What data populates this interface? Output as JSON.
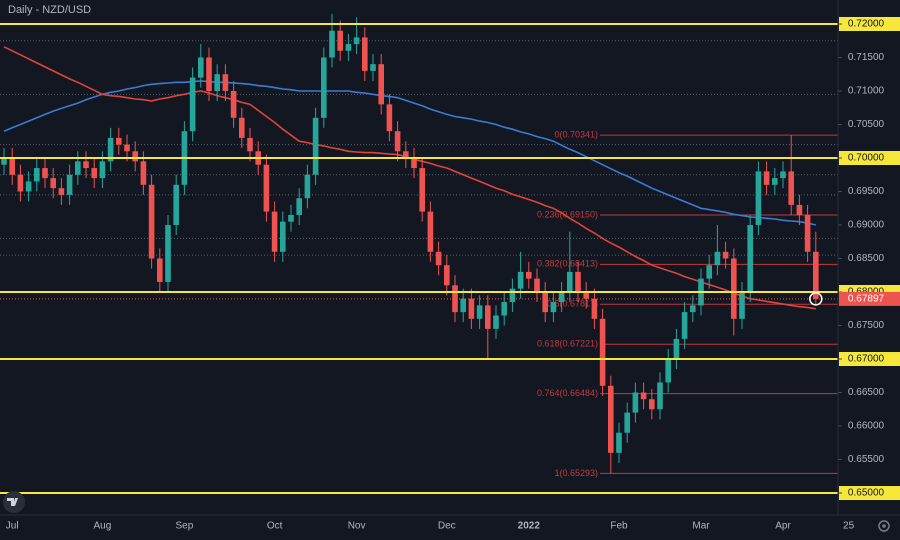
{
  "chart_data": {
    "type": "candlestick",
    "title": "Daily - NZD/USD",
    "categories": [
      null,
      "Jul",
      null,
      null,
      null,
      null,
      null,
      null,
      null,
      null,
      null,
      null,
      "Aug",
      null,
      null,
      null,
      null,
      null,
      null,
      null,
      null,
      null,
      "Sep",
      null,
      null,
      null,
      null,
      null,
      null,
      null,
      null,
      null,
      null,
      "Oct",
      null,
      null,
      null,
      null,
      null,
      null,
      null,
      null,
      null,
      "Nov",
      null,
      null,
      null,
      null,
      null,
      null,
      null,
      null,
      null,
      null,
      "Dec",
      null,
      null,
      null,
      null,
      null,
      null,
      null,
      null,
      null,
      "2022",
      null,
      null,
      null,
      null,
      null,
      null,
      null,
      null,
      null,
      null,
      "Feb",
      null,
      null,
      null,
      null,
      null,
      null,
      null,
      null,
      null,
      "Mar",
      null,
      null,
      null,
      null,
      null,
      null,
      null,
      null,
      null,
      "Apr",
      null,
      null,
      null,
      null,
      null,
      null,
      null,
      "25"
    ],
    "open": [
      0.699,
      0.7,
      0.6975,
      0.695,
      0.6965,
      0.6985,
      0.697,
      0.6955,
      0.6945,
      0.6975,
      0.6995,
      0.6985,
      0.697,
      0.6995,
      0.703,
      0.702,
      0.701,
      0.6995,
      0.696,
      0.685,
      0.6815,
      0.69,
      0.696,
      0.704,
      0.712,
      0.715,
      0.71,
      0.7125,
      0.71,
      0.706,
      0.703,
      0.701,
      0.699,
      0.692,
      0.686,
      0.6905,
      0.6915,
      0.694,
      0.6975,
      0.706,
      0.715,
      0.719,
      0.716,
      0.717,
      0.718,
      0.713,
      0.714,
      0.708,
      0.704,
      0.701,
      0.7,
      0.6985,
      0.692,
      0.686,
      0.684,
      0.681,
      0.677,
      0.679,
      0.676,
      0.678,
      0.6745,
      0.6765,
      0.6785,
      0.6805,
      0.683,
      0.682,
      0.68,
      0.677,
      0.6785,
      0.68,
      0.683,
      0.68,
      0.679,
      0.676,
      0.666,
      0.656,
      0.659,
      0.662,
      0.665,
      0.664,
      0.6625,
      0.6665,
      0.67,
      0.673,
      0.677,
      0.678,
      0.682,
      0.684,
      0.686,
      0.685,
      0.676,
      0.68,
      0.69,
      0.698,
      0.696,
      0.697,
      0.698,
      0.693,
      0.6915,
      0.686,
      null,
      null,
      null,
      null
    ],
    "high": [
      0.7015,
      0.7015,
      0.699,
      0.698,
      0.7,
      0.7,
      0.6985,
      0.697,
      0.699,
      0.701,
      0.701,
      0.7,
      0.701,
      0.7045,
      0.7045,
      0.7035,
      0.7025,
      0.701,
      0.6975,
      0.6865,
      0.6915,
      0.6975,
      0.7055,
      0.7135,
      0.717,
      0.7165,
      0.714,
      0.714,
      0.7115,
      0.7075,
      0.7045,
      0.7025,
      0.7005,
      0.6935,
      0.692,
      0.693,
      0.6955,
      0.699,
      0.7075,
      0.7165,
      0.7215,
      0.7205,
      0.7185,
      0.721,
      0.7195,
      0.7155,
      0.7155,
      0.7095,
      0.7055,
      0.7025,
      0.7015,
      0.7,
      0.6935,
      0.6875,
      0.6855,
      0.6825,
      0.6805,
      0.6805,
      0.6795,
      0.6795,
      0.678,
      0.68,
      0.682,
      0.686,
      0.6845,
      0.6835,
      0.6815,
      0.68,
      0.6815,
      0.689,
      0.6845,
      0.6815,
      0.6805,
      0.6775,
      0.6675,
      0.6605,
      0.6635,
      0.6665,
      0.6665,
      0.6655,
      0.668,
      0.6715,
      0.6745,
      0.6785,
      0.6795,
      0.6835,
      0.6855,
      0.69,
      0.6875,
      0.6865,
      0.6815,
      0.6915,
      0.6995,
      0.6995,
      0.6985,
      0.6995,
      0.7034,
      0.6945,
      0.693,
      0.689,
      null,
      null,
      null,
      null
    ],
    "low": [
      0.6975,
      0.696,
      0.6935,
      0.6935,
      0.695,
      0.6955,
      0.694,
      0.693,
      0.693,
      0.696,
      0.697,
      0.6955,
      0.6955,
      0.698,
      0.7005,
      0.6995,
      0.698,
      0.6945,
      0.6835,
      0.68,
      0.68,
      0.6885,
      0.6945,
      0.7025,
      0.7105,
      0.7085,
      0.7085,
      0.7085,
      0.7045,
      0.7015,
      0.6995,
      0.6975,
      0.6905,
      0.6845,
      0.6845,
      0.689,
      0.69,
      0.6925,
      0.696,
      0.7045,
      0.7135,
      0.7145,
      0.7145,
      0.7155,
      0.7115,
      0.7115,
      0.7065,
      0.7025,
      0.6995,
      0.6985,
      0.697,
      0.6905,
      0.6845,
      0.6825,
      0.6795,
      0.6755,
      0.6755,
      0.6745,
      0.6745,
      0.67,
      0.673,
      0.675,
      0.677,
      0.679,
      0.6805,
      0.6785,
      0.6755,
      0.6755,
      0.677,
      0.6785,
      0.6785,
      0.6775,
      0.6745,
      0.6645,
      0.65293,
      0.6545,
      0.6575,
      0.6605,
      0.6625,
      0.661,
      0.661,
      0.665,
      0.6685,
      0.6715,
      0.6755,
      0.6765,
      0.6805,
      0.6825,
      0.6835,
      0.6735,
      0.6745,
      0.6785,
      0.6885,
      0.6945,
      0.6945,
      0.6955,
      0.6915,
      0.69,
      0.6845,
      0.678,
      null,
      null,
      null,
      null
    ],
    "close": [
      0.7,
      0.6975,
      0.695,
      0.6965,
      0.6985,
      0.697,
      0.6955,
      0.6945,
      0.6975,
      0.6995,
      0.6985,
      0.697,
      0.6995,
      0.703,
      0.702,
      0.701,
      0.6995,
      0.696,
      0.685,
      0.6815,
      0.69,
      0.696,
      0.704,
      0.712,
      0.715,
      0.71,
      0.7125,
      0.71,
      0.706,
      0.703,
      0.701,
      0.699,
      0.692,
      0.686,
      0.6905,
      0.6915,
      0.694,
      0.6975,
      0.706,
      0.715,
      0.719,
      0.716,
      0.717,
      0.718,
      0.713,
      0.714,
      0.708,
      0.704,
      0.701,
      0.7,
      0.6985,
      0.692,
      0.686,
      0.684,
      0.681,
      0.677,
      0.679,
      0.676,
      0.678,
      0.6745,
      0.6765,
      0.6785,
      0.6805,
      0.683,
      0.682,
      0.68,
      0.677,
      0.6785,
      0.68,
      0.683,
      0.68,
      0.679,
      0.676,
      0.666,
      0.656,
      0.659,
      0.662,
      0.665,
      0.664,
      0.6625,
      0.6665,
      0.67,
      0.673,
      0.677,
      0.678,
      0.682,
      0.684,
      0.686,
      0.685,
      0.676,
      0.68,
      0.69,
      0.698,
      0.696,
      0.697,
      0.698,
      0.693,
      0.6915,
      0.686,
      0.67897,
      null,
      null,
      null,
      null
    ],
    "up_color": "#26a69a",
    "down_color": "#ef5350",
    "series": [
      {
        "color": "#3a7bd5",
        "values": [
          0.704,
          0.7045,
          0.705,
          0.7055,
          0.706,
          0.7065,
          0.707,
          0.7074,
          0.7078,
          0.7082,
          0.7087,
          0.7091,
          0.7095,
          0.7098,
          0.71,
          0.7103,
          0.7105,
          0.7108,
          0.711,
          0.7111,
          0.7112,
          0.7113,
          0.7113,
          0.7114,
          0.7115,
          0.7114,
          0.7113,
          0.7113,
          0.7112,
          0.7111,
          0.711,
          0.7108,
          0.7107,
          0.7105,
          0.7103,
          0.7102,
          0.71,
          0.71,
          0.71,
          0.71,
          0.71,
          0.71,
          0.71,
          0.7098,
          0.7097,
          0.7095,
          0.7093,
          0.7092,
          0.709,
          0.7086,
          0.7082,
          0.7078,
          0.7073,
          0.7069,
          0.7065,
          0.7062,
          0.706,
          0.7058,
          0.7055,
          0.7053,
          0.705,
          0.7046,
          0.7043,
          0.7039,
          0.7036,
          0.7032,
          0.7029,
          0.7025,
          0.7019,
          0.7013,
          0.7008,
          0.7002,
          0.6996,
          0.699,
          0.6984,
          0.6978,
          0.6973,
          0.6967,
          0.6961,
          0.6955,
          0.695,
          0.6945,
          0.694,
          0.6935,
          0.693,
          0.6925,
          0.6923,
          0.6921,
          0.6919,
          0.6916,
          0.6914,
          0.6912,
          0.6911,
          0.691,
          0.6909,
          0.6907,
          0.6906,
          0.6905,
          0.6903,
          0.69,
          null,
          null,
          null,
          null
        ]
      },
      {
        "color": "#e0453a",
        "values": [
          0.7166,
          0.716,
          0.7154,
          0.7148,
          0.7142,
          0.7136,
          0.713,
          0.7124,
          0.7118,
          0.7113,
          0.7107,
          0.7101,
          0.7095,
          0.7093,
          0.7092,
          0.709,
          0.7088,
          0.7087,
          0.7085,
          0.7088,
          0.709,
          0.7093,
          0.7095,
          0.7098,
          0.71,
          0.7097,
          0.7093,
          0.709,
          0.7087,
          0.7083,
          0.708,
          0.7071,
          0.7062,
          0.7053,
          0.7043,
          0.7034,
          0.7025,
          0.7023,
          0.702,
          0.7018,
          0.7015,
          0.7013,
          0.701,
          0.7009,
          0.7008,
          0.7008,
          0.7007,
          0.7006,
          0.7005,
          0.7002,
          0.6998,
          0.6995,
          0.6992,
          0.6988,
          0.6985,
          0.698,
          0.6975,
          0.697,
          0.6965,
          0.696,
          0.6955,
          0.6951,
          0.6946,
          0.6942,
          0.6938,
          0.6934,
          0.6929,
          0.6925,
          0.6918,
          0.691,
          0.6903,
          0.6895,
          0.6888,
          0.688,
          0.6873,
          0.6867,
          0.686,
          0.6853,
          0.6847,
          0.684,
          0.6836,
          0.6832,
          0.6828,
          0.6823,
          0.6819,
          0.6815,
          0.6811,
          0.6807,
          0.6803,
          0.6798,
          0.6794,
          0.679,
          0.6788,
          0.6786,
          0.6784,
          0.6782,
          0.678,
          0.6778,
          0.6777,
          0.6775,
          null,
          null,
          null,
          null
        ]
      }
    ],
    "ylim": [
      0.64672,
      0.72358
    ],
    "yticks": [
      {
        "value": 0.65,
        "label": "0.65000"
      },
      {
        "value": 0.655,
        "label": "0.65500"
      },
      {
        "value": 0.66,
        "label": "0.66000"
      },
      {
        "value": 0.665,
        "label": "0.66500"
      },
      {
        "value": 0.67,
        "label": "0.67000"
      },
      {
        "value": 0.675,
        "label": "0.67500"
      },
      {
        "value": 0.68,
        "label": "0.68000"
      },
      {
        "value": 0.685,
        "label": "0.68500"
      },
      {
        "value": 0.69,
        "label": "0.69000"
      },
      {
        "value": 0.695,
        "label": "0.69500"
      },
      {
        "value": 0.7,
        "label": "0.70000"
      },
      {
        "value": 0.705,
        "label": "0.70500"
      },
      {
        "value": 0.71,
        "label": "0.71000"
      },
      {
        "value": 0.715,
        "label": "0.71500"
      },
      {
        "value": 0.72,
        "label": "0.72000"
      }
    ],
    "key_levels": [
      0.72,
      0.7,
      0.68,
      0.67,
      0.65
    ],
    "key_level_color": "#f5e83b",
    "reference_lines": [
      0.7175,
      0.7095,
      0.702,
      0.6975,
      0.6945,
      0.688,
      0.6855
    ],
    "fib_levels": [
      {
        "value": 0.70341,
        "label": "0(0.70341)"
      },
      {
        "value": 0.6915,
        "label": "0.236(0.69150)"
      },
      {
        "value": 0.68413,
        "label": "0.382(0.68413)"
      },
      {
        "value": 0.67817,
        "label": "0.5(0.67817)"
      },
      {
        "value": 0.67221,
        "label": "0.618(0.67221)"
      },
      {
        "value": 0.66484,
        "label": "0.764(0.66484)"
      },
      {
        "value": 0.65293,
        "label": "1(0.65293)"
      }
    ],
    "fib_color": "#c2393f",
    "last_price": {
      "value": 0.67897,
      "label": "0.67897"
    }
  }
}
